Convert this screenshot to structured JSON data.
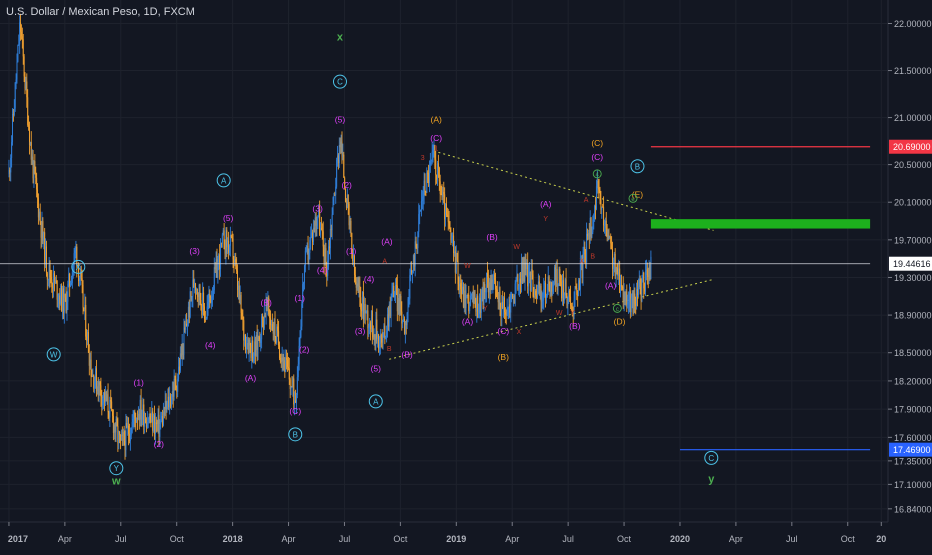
{
  "header": {
    "title": "U.S. Dollar / Mexican Peso, 1D, FXCM"
  },
  "chart_data": {
    "type": "candlestick",
    "symbol": "USDMXN",
    "interval": "1D",
    "ylim": [
      16.7,
      22.25
    ],
    "price_ticks": [
      "22.00000",
      "21.50000",
      "21.00000",
      "20.50000",
      "20.10000",
      "19.70000",
      "19.30000",
      "18.90000",
      "18.50000",
      "18.20000",
      "17.90000",
      "17.60000",
      "17.35000",
      "17.10000",
      "16.84000"
    ],
    "time_ticks": [
      "2017",
      "Apr",
      "Jul",
      "Oct",
      "2018",
      "Apr",
      "Jul",
      "Oct",
      "2019",
      "Apr",
      "Jul",
      "Oct",
      "2020",
      "Apr",
      "Jul",
      "Oct",
      "20"
    ],
    "price_points": [
      {
        "t": 2017.0,
        "p": 20.4
      },
      {
        "t": 2017.05,
        "p": 22.0
      },
      {
        "t": 2017.1,
        "p": 20.6
      },
      {
        "t": 2017.17,
        "p": 19.4
      },
      {
        "t": 2017.25,
        "p": 19.0
      },
      {
        "t": 2017.3,
        "p": 19.6
      },
      {
        "t": 2017.37,
        "p": 18.3
      },
      {
        "t": 2017.45,
        "p": 17.9
      },
      {
        "t": 2017.5,
        "p": 17.5
      },
      {
        "t": 2017.58,
        "p": 17.9
      },
      {
        "t": 2017.67,
        "p": 17.7
      },
      {
        "t": 2017.75,
        "p": 18.2
      },
      {
        "t": 2017.83,
        "p": 19.3
      },
      {
        "t": 2017.88,
        "p": 18.9
      },
      {
        "t": 2017.96,
        "p": 19.7
      },
      {
        "t": 2018.0,
        "p": 19.6
      },
      {
        "t": 2018.05,
        "p": 18.7
      },
      {
        "t": 2018.1,
        "p": 18.5
      },
      {
        "t": 2018.15,
        "p": 19.0
      },
      {
        "t": 2018.22,
        "p": 18.5
      },
      {
        "t": 2018.28,
        "p": 18.0
      },
      {
        "t": 2018.32,
        "p": 19.4
      },
      {
        "t": 2018.38,
        "p": 20.0
      },
      {
        "t": 2018.42,
        "p": 19.4
      },
      {
        "t": 2018.48,
        "p": 20.8
      },
      {
        "t": 2018.55,
        "p": 19.2
      },
      {
        "t": 2018.6,
        "p": 18.9
      },
      {
        "t": 2018.67,
        "p": 18.6
      },
      {
        "t": 2018.72,
        "p": 19.2
      },
      {
        "t": 2018.77,
        "p": 18.8
      },
      {
        "t": 2018.85,
        "p": 20.2
      },
      {
        "t": 2018.9,
        "p": 20.6
      },
      {
        "t": 2018.95,
        "p": 20.0
      },
      {
        "t": 2019.03,
        "p": 19.1
      },
      {
        "t": 2019.1,
        "p": 19.0
      },
      {
        "t": 2019.15,
        "p": 19.3
      },
      {
        "t": 2019.22,
        "p": 18.9
      },
      {
        "t": 2019.3,
        "p": 19.4
      },
      {
        "t": 2019.38,
        "p": 19.1
      },
      {
        "t": 2019.45,
        "p": 19.3
      },
      {
        "t": 2019.52,
        "p": 19.0
      },
      {
        "t": 2019.58,
        "p": 19.6
      },
      {
        "t": 2019.63,
        "p": 20.2
      },
      {
        "t": 2019.68,
        "p": 19.7
      },
      {
        "t": 2019.72,
        "p": 19.3
      },
      {
        "t": 2019.78,
        "p": 19.0
      },
      {
        "t": 2019.83,
        "p": 19.2
      },
      {
        "t": 2019.87,
        "p": 19.4
      }
    ],
    "hlines": [
      {
        "label": "20.69000",
        "price": 20.69,
        "color": "#f23645",
        "t0": 2019.87,
        "t1": 2020.85
      },
      {
        "label": "19.44616",
        "price": 19.44616,
        "color": "#d1d4dc",
        "t0": 2016.95,
        "t1": 2020.85
      },
      {
        "label": "17.46900",
        "price": 17.469,
        "color": "#2962ff",
        "t0": 2020.0,
        "t1": 2020.85
      }
    ],
    "zone": {
      "t0": 2019.87,
      "t1": 2020.85,
      "p0": 19.82,
      "p1": 19.92,
      "color": "#1db01d"
    },
    "trendlines": [
      {
        "t0": 2018.92,
        "p0": 20.63,
        "t1": 2020.15,
        "p1": 19.8,
        "color": "#c8d04c"
      },
      {
        "t0": 2018.7,
        "p0": 18.43,
        "t1": 2020.15,
        "p1": 19.28,
        "color": "#c8d04c"
      }
    ],
    "wave_labels": [
      {
        "text": "W",
        "t": 2017.2,
        "p": 18.45,
        "color": "#4dc3e8",
        "circle": true
      },
      {
        "text": "X",
        "t": 2017.31,
        "p": 19.38,
        "color": "#4dc3e8",
        "circle": true
      },
      {
        "text": "Y",
        "t": 2017.48,
        "p": 17.24,
        "color": "#4dc3e8",
        "circle": true
      },
      {
        "text": "w",
        "t": 2017.48,
        "p": 17.1,
        "color": "#4caf50",
        "circle": false
      },
      {
        "text": "(1)",
        "t": 2017.58,
        "p": 18.15,
        "color": "#e040fb",
        "circle": false
      },
      {
        "text": "(2)",
        "t": 2017.67,
        "p": 17.5,
        "color": "#e040fb",
        "circle": false
      },
      {
        "text": "(3)",
        "t": 2017.83,
        "p": 19.55,
        "color": "#e040fb",
        "circle": false
      },
      {
        "text": "A",
        "t": 2017.96,
        "p": 20.3,
        "color": "#4dc3e8",
        "circle": true
      },
      {
        "text": "(5)",
        "t": 2017.98,
        "p": 19.9,
        "color": "#e040fb",
        "circle": false
      },
      {
        "text": "(4)",
        "t": 2017.9,
        "p": 18.55,
        "color": "#e040fb",
        "circle": false
      },
      {
        "text": "(A)",
        "t": 2018.08,
        "p": 18.2,
        "color": "#e040fb",
        "circle": false
      },
      {
        "text": "(B)",
        "t": 2018.15,
        "p": 19.0,
        "color": "#e040fb",
        "circle": false
      },
      {
        "text": "(C)",
        "t": 2018.28,
        "p": 17.85,
        "color": "#e040fb",
        "circle": false
      },
      {
        "text": "B",
        "t": 2018.28,
        "p": 17.6,
        "color": "#4dc3e8",
        "circle": true
      },
      {
        "text": "(1)",
        "t": 2018.3,
        "p": 19.05,
        "color": "#e040fb",
        "circle": false
      },
      {
        "text": "(2)",
        "t": 2018.32,
        "p": 18.5,
        "color": "#e040fb",
        "circle": false
      },
      {
        "text": "(3)",
        "t": 2018.38,
        "p": 20.0,
        "color": "#e040fb",
        "circle": false
      },
      {
        "text": "(4)",
        "t": 2018.4,
        "p": 19.35,
        "color": "#e040fb",
        "circle": false
      },
      {
        "text": "(5)",
        "t": 2018.48,
        "p": 20.95,
        "color": "#e040fb",
        "circle": false
      },
      {
        "text": "C",
        "t": 2018.48,
        "p": 21.35,
        "color": "#4dc3e8",
        "circle": true
      },
      {
        "text": "x",
        "t": 2018.48,
        "p": 21.82,
        "color": "#4caf50",
        "circle": false
      },
      {
        "text": "(1)",
        "t": 2018.53,
        "p": 19.55,
        "color": "#e040fb",
        "circle": false
      },
      {
        "text": "(2)",
        "t": 2018.51,
        "p": 20.25,
        "color": "#e040fb",
        "circle": false
      },
      {
        "text": "(3)",
        "t": 2018.57,
        "p": 18.7,
        "color": "#e040fb",
        "circle": false
      },
      {
        "text": "(4)",
        "t": 2018.61,
        "p": 19.25,
        "color": "#e040fb",
        "circle": false
      },
      {
        "text": "(5)",
        "t": 2018.64,
        "p": 18.3,
        "color": "#e040fb",
        "circle": false
      },
      {
        "text": "A",
        "t": 2018.64,
        "p": 17.95,
        "color": "#4dc3e8",
        "circle": true
      },
      {
        "text": "(A)",
        "t": 2018.69,
        "p": 19.65,
        "color": "#e040fb",
        "circle": false
      },
      {
        "text": "(B)",
        "t": 2018.78,
        "p": 18.45,
        "color": "#e040fb",
        "circle": false
      },
      {
        "text": "(C)",
        "t": 2018.91,
        "p": 20.75,
        "color": "#e040fb",
        "circle": false
      },
      {
        "text": "(A)",
        "t": 2018.91,
        "p": 20.95,
        "color": "#f5a623",
        "circle": false
      },
      {
        "text": "(A)",
        "t": 2019.05,
        "p": 18.8,
        "color": "#e040fb",
        "circle": false
      },
      {
        "text": "(B)",
        "t": 2019.16,
        "p": 19.7,
        "color": "#e040fb",
        "circle": false
      },
      {
        "text": "(C)",
        "t": 2019.21,
        "p": 18.7,
        "color": "#e040fb",
        "circle": false
      },
      {
        "text": "(B)",
        "t": 2019.21,
        "p": 18.42,
        "color": "#f5a623",
        "circle": false
      },
      {
        "text": "(A)",
        "t": 2019.4,
        "p": 20.05,
        "color": "#e040fb",
        "circle": false
      },
      {
        "text": "(B)",
        "t": 2019.53,
        "p": 18.75,
        "color": "#e040fb",
        "circle": false
      },
      {
        "text": "(C)",
        "t": 2019.63,
        "p": 20.55,
        "color": "#e040fb",
        "circle": false
      },
      {
        "text": "(C)",
        "t": 2019.63,
        "p": 20.7,
        "color": "#f5a623",
        "circle": false
      },
      {
        "text": "(A)",
        "t": 2019.69,
        "p": 19.18,
        "color": "#e040fb",
        "circle": false
      },
      {
        "text": "(D)",
        "t": 2019.73,
        "p": 18.8,
        "color": "#f5a623",
        "circle": false
      },
      {
        "text": "(E)",
        "t": 2019.81,
        "p": 20.15,
        "color": "#f5a623",
        "circle": false
      },
      {
        "text": "B",
        "t": 2019.81,
        "p": 20.45,
        "color": "#4dc3e8",
        "circle": true
      },
      {
        "text": "C",
        "t": 2020.14,
        "p": 17.35,
        "color": "#4dc3e8",
        "circle": true
      },
      {
        "text": "y",
        "t": 2020.14,
        "p": 17.12,
        "color": "#4caf50",
        "circle": false
      }
    ],
    "mini_labels": [
      {
        "text": "3",
        "t": 2018.85,
        "p": 20.55
      },
      {
        "text": "1",
        "t": 2018.91,
        "p": 20.65
      },
      {
        "text": "A",
        "t": 2018.68,
        "p": 19.45
      },
      {
        "text": "B",
        "t": 2018.7,
        "p": 18.52
      },
      {
        "text": "W",
        "t": 2019.05,
        "p": 19.4
      },
      {
        "text": "Y",
        "t": 2019.13,
        "p": 18.95
      },
      {
        "text": "W",
        "t": 2019.27,
        "p": 19.6
      },
      {
        "text": "X",
        "t": 2019.28,
        "p": 18.7
      },
      {
        "text": "W",
        "t": 2019.46,
        "p": 18.9
      },
      {
        "text": "Y",
        "t": 2019.4,
        "p": 19.9
      },
      {
        "text": "A",
        "t": 2019.58,
        "p": 20.1
      },
      {
        "text": "X",
        "t": 2019.56,
        "p": 19.45
      },
      {
        "text": "B",
        "t": 2019.61,
        "p": 19.5
      },
      {
        "text": "Y",
        "t": 2019.52,
        "p": 18.9
      }
    ],
    "small_circles": [
      {
        "text": "4",
        "t": 2019.63,
        "p": 20.38,
        "color": "#4caf50"
      },
      {
        "text": "e",
        "t": 2019.79,
        "p": 20.12,
        "color": "#4caf50"
      },
      {
        "text": "c",
        "t": 2019.72,
        "p": 18.95,
        "color": "#4caf50"
      }
    ],
    "grid": true
  }
}
